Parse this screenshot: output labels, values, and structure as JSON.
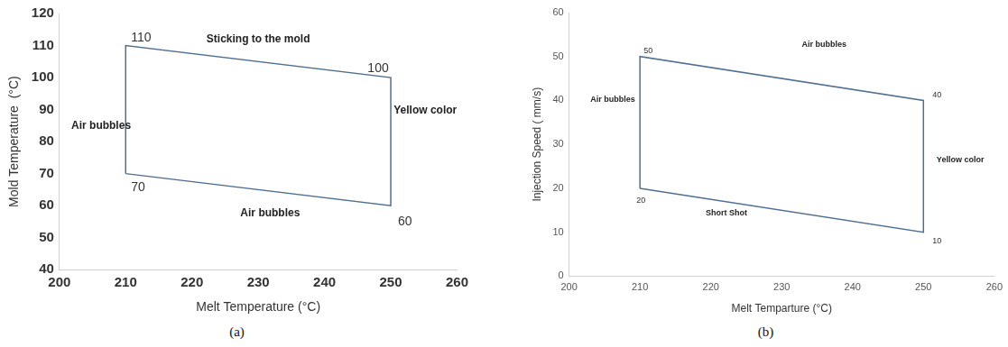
{
  "chart_data": [
    {
      "type": "line",
      "caption": "(a)",
      "x_label": "Melt Temperature (°C)",
      "y_label": "Mold Temperature  (°C)",
      "x": [
        210,
        210,
        250,
        250
      ],
      "values": [
        70,
        110,
        100,
        60
      ],
      "color": "#4f6f8f",
      "xlim": [
        200,
        260
      ],
      "xticks": [
        200,
        210,
        220,
        230,
        240,
        250,
        260
      ],
      "ylim": [
        40,
        120
      ],
      "yticks": [
        40,
        50,
        60,
        70,
        80,
        90,
        100,
        110,
        120
      ],
      "grid": false,
      "data_labels": true,
      "annotations": [
        "Sticking to the mold",
        "Air bubbles",
        "Yellow color",
        "Air bubbles"
      ]
    },
    {
      "type": "line",
      "caption": "(b)",
      "x_label": "Melt Temparture (°C)",
      "y_label": "Injection Speed ( mm/s)",
      "x": [
        210,
        210,
        250,
        250
      ],
      "values": [
        20,
        50,
        40,
        10
      ],
      "color": "#4f6f8f",
      "xlim": [
        200,
        260
      ],
      "xticks": [
        200,
        210,
        220,
        230,
        240,
        250,
        260
      ],
      "ylim": [
        0,
        60
      ],
      "yticks": [
        0,
        10,
        20,
        30,
        40,
        50,
        60
      ],
      "grid": false,
      "data_labels": true,
      "annotations": [
        "Air bubbles",
        "Air bubbles",
        "Yellow color",
        "Short Shot"
      ]
    }
  ]
}
